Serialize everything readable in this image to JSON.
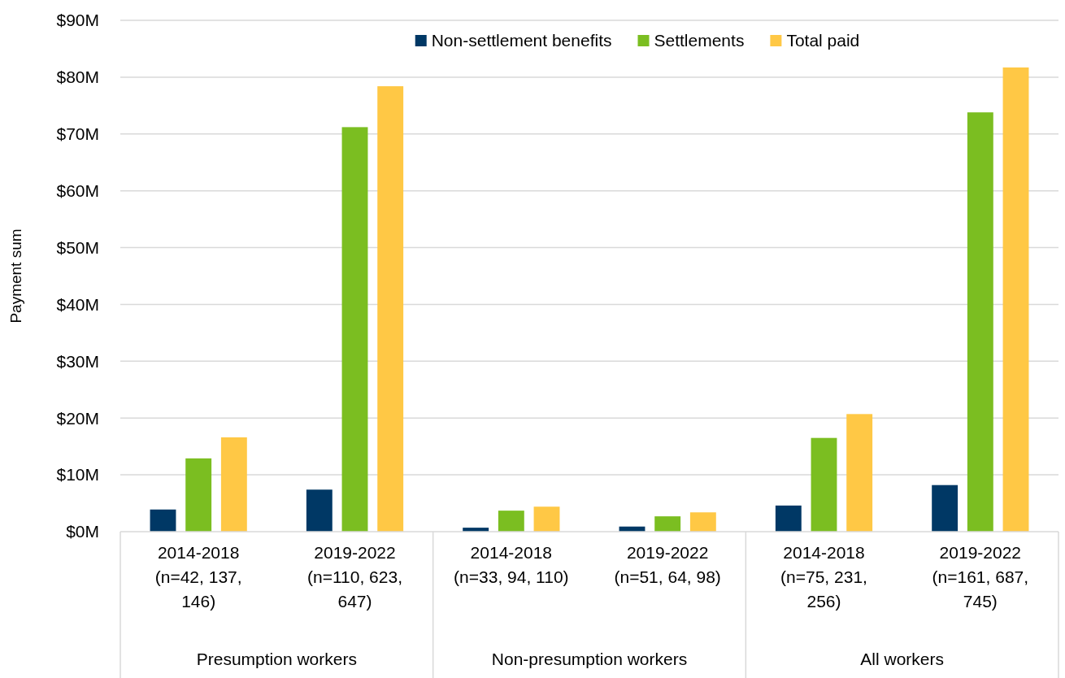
{
  "chart_data": {
    "type": "bar",
    "ylabel": "Payment sum",
    "categories": [
      "2014-2018 (n=42, 137, 146)",
      "2019-2022 (n=110, 623, 647)",
      "2014-2018 (n=33, 94, 110)",
      "2019-2022 (n=51, 64, 98)",
      "2014-2018 (n=75, 231, 256)",
      "2019-2022 (n=161, 687, 745)"
    ],
    "series": [
      {
        "name": "Non-settlement benefits",
        "color": "#003865",
        "values": [
          3.9,
          7.4,
          0.7,
          0.9,
          4.6,
          8.2
        ]
      },
      {
        "name": "Settlements",
        "color": "#7bbe21",
        "values": [
          12.9,
          71.2,
          3.7,
          2.7,
          16.5,
          73.8
        ]
      },
      {
        "name": "Total paid",
        "color": "#ffc845",
        "values": [
          16.6,
          78.4,
          4.4,
          3.4,
          20.7,
          81.7
        ]
      }
    ],
    "ylim": [
      0,
      90
    ],
    "yticks": [
      {
        "value": 0,
        "label": "$0M"
      },
      {
        "value": 10,
        "label": "$10M"
      },
      {
        "value": 20,
        "label": "$20M"
      },
      {
        "value": 30,
        "label": "$30M"
      },
      {
        "value": 40,
        "label": "$40M"
      },
      {
        "value": 50,
        "label": "$50M"
      },
      {
        "value": 60,
        "label": "$60M"
      },
      {
        "value": 70,
        "label": "$70M"
      },
      {
        "value": 80,
        "label": "$80M"
      },
      {
        "value": 90,
        "label": "$90M"
      }
    ],
    "annotations": [
      "Presumption workers",
      "Non-presumption workers",
      "All workers"
    ],
    "grid": "y",
    "legend": "top"
  }
}
